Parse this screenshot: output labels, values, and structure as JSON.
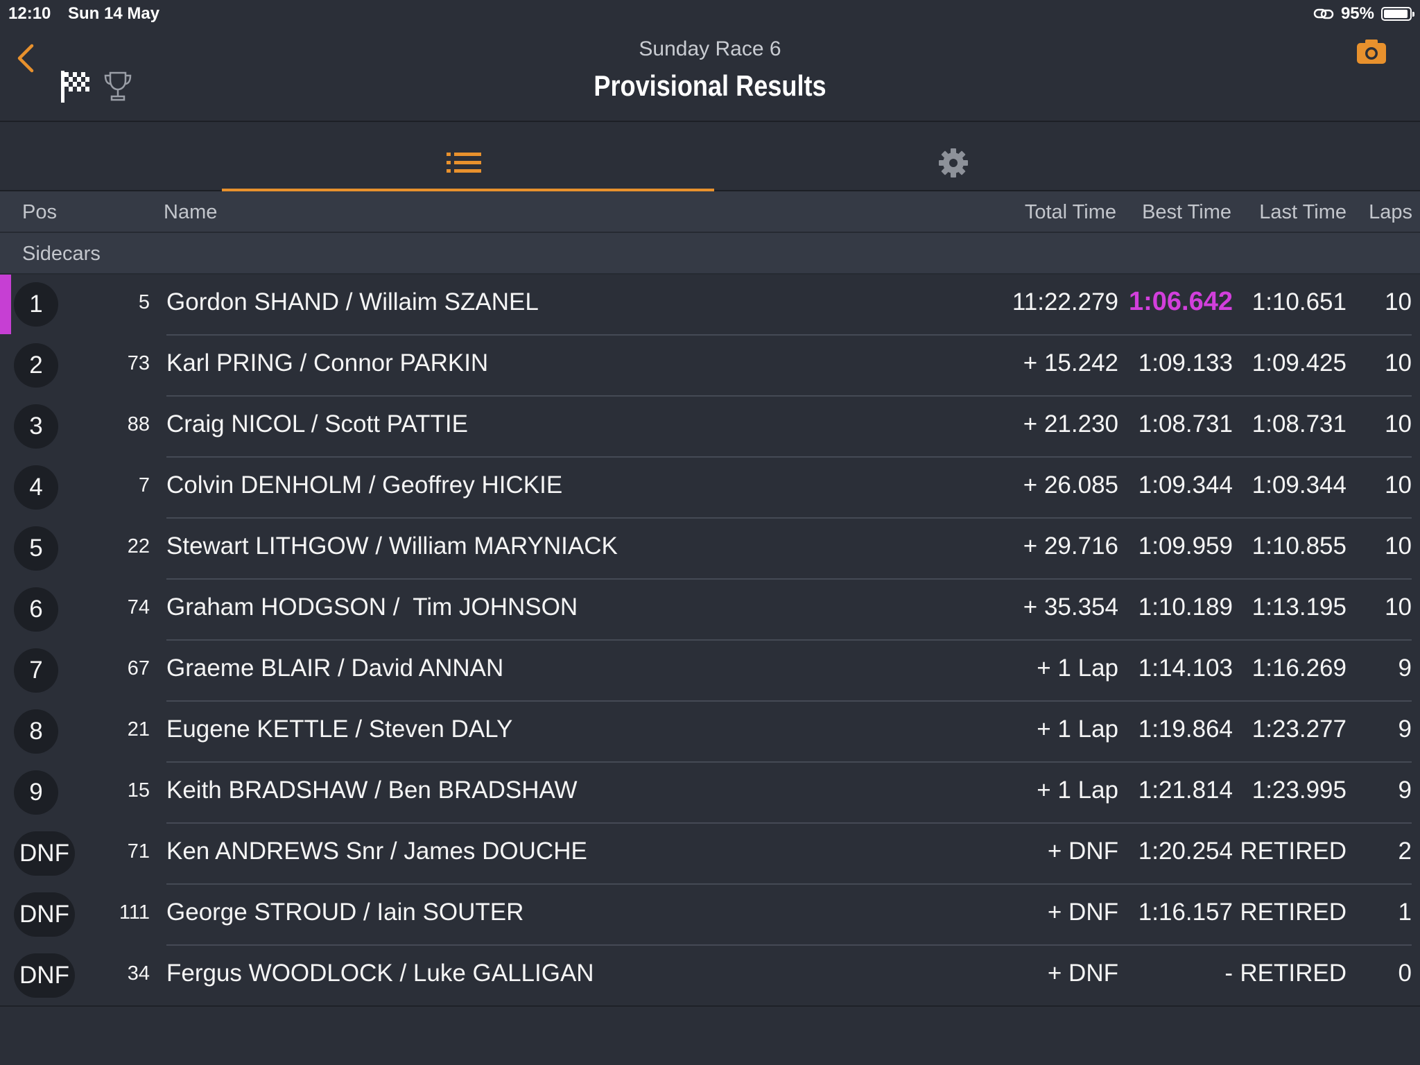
{
  "status_bar": {
    "time": "12:10",
    "date": "Sun 14 May",
    "battery": "95%"
  },
  "header": {
    "subtitle": "Sunday Race 6",
    "title": "Provisional Results"
  },
  "icons": {
    "back": "chevron-left-icon",
    "flag": "checkered-flag-icon",
    "trophy": "trophy-icon",
    "camera": "camera-icon",
    "list": "list-icon",
    "settings": "gear-icon"
  },
  "colors": {
    "accent": "#e8912d",
    "fastest_lap": "#d23fdc",
    "background": "#2b2f38"
  },
  "columns": {
    "pos": "Pos",
    "name": "Name",
    "total": "Total Time",
    "best": "Best Time",
    "last": "Last Time",
    "laps": "Laps"
  },
  "group": "Sidecars",
  "rows": [
    {
      "pos": "1",
      "num": "5",
      "name": "Gordon SHAND / Willaim SZANEL",
      "total": "11:22.279",
      "best": "1:06.642",
      "last": "1:10.651",
      "laps": "10"
    },
    {
      "pos": "2",
      "num": "73",
      "name": "Karl PRING / Connor PARKIN",
      "total": "+ 15.242",
      "best": "1:09.133",
      "last": "1:09.425",
      "laps": "10"
    },
    {
      "pos": "3",
      "num": "88",
      "name": "Craig NICOL / Scott PATTIE",
      "total": "+ 21.230",
      "best": "1:08.731",
      "last": "1:08.731",
      "laps": "10"
    },
    {
      "pos": "4",
      "num": "7",
      "name": "Colvin DENHOLM / Geoffrey HICKIE",
      "total": "+ 26.085",
      "best": "1:09.344",
      "last": "1:09.344",
      "laps": "10"
    },
    {
      "pos": "5",
      "num": "22",
      "name": "Stewart LITHGOW / William MARYNIACK",
      "total": "+ 29.716",
      "best": "1:09.959",
      "last": "1:10.855",
      "laps": "10"
    },
    {
      "pos": "6",
      "num": "74",
      "name": "Graham HODGSON /  Tim JOHNSON",
      "total": "+ 35.354",
      "best": "1:10.189",
      "last": "1:13.195",
      "laps": "10"
    },
    {
      "pos": "7",
      "num": "67",
      "name": "Graeme BLAIR / David ANNAN",
      "total": "+ 1 Lap",
      "best": "1:14.103",
      "last": "1:16.269",
      "laps": "9"
    },
    {
      "pos": "8",
      "num": "21",
      "name": "Eugene KETTLE / Steven DALY",
      "total": "+ 1 Lap",
      "best": "1:19.864",
      "last": "1:23.277",
      "laps": "9"
    },
    {
      "pos": "9",
      "num": "15",
      "name": "Keith BRADSHAW / Ben BRADSHAW",
      "total": "+ 1 Lap",
      "best": "1:21.814",
      "last": "1:23.995",
      "laps": "9"
    },
    {
      "pos": "DNF",
      "num": "71",
      "name": "Ken ANDREWS Snr / James DOUCHE",
      "total": "+ DNF",
      "best": "1:20.254",
      "last": "RETIRED",
      "laps": "2"
    },
    {
      "pos": "DNF",
      "num": "111",
      "name": "George STROUD / Iain SOUTER",
      "total": "+ DNF",
      "best": "1:16.157",
      "last": "RETIRED",
      "laps": "1"
    },
    {
      "pos": "DNF",
      "num": "34",
      "name": "Fergus WOODLOCK / Luke GALLIGAN",
      "total": "+ DNF",
      "best": "-",
      "last": "RETIRED",
      "laps": "0"
    }
  ]
}
